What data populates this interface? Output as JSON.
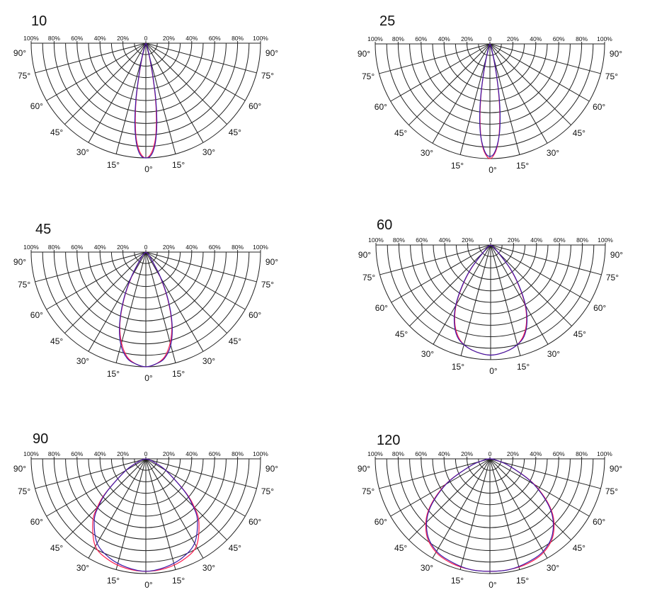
{
  "chart_data": [
    {
      "type": "polar",
      "title": "10",
      "beam_angle_deg": 10,
      "radial_tick_labels": [
        "100%",
        "80%",
        "60%",
        "40%",
        "20%",
        "0",
        "20%",
        "40%",
        "60%",
        "80%",
        "100%"
      ],
      "angle_labels": [
        "90°",
        "75°",
        "60°",
        "45°",
        "30°",
        "15°",
        "0°"
      ],
      "series": [
        {
          "color": "#ff1a4d",
          "angles_deg": [
            0,
            2,
            4,
            6,
            8,
            10,
            12,
            15,
            20,
            30
          ],
          "values_pct": [
            100,
            98,
            92,
            82,
            66,
            48,
            28,
            12,
            4,
            1
          ]
        },
        {
          "color": "#3a1aa8",
          "angles_deg": [
            0,
            2,
            4,
            6,
            8,
            10,
            12,
            15,
            20,
            30
          ],
          "values_pct": [
            100,
            99,
            94,
            84,
            69,
            50,
            30,
            13,
            4,
            1
          ]
        }
      ]
    },
    {
      "type": "polar",
      "title": "25",
      "beam_angle_deg": 25,
      "radial_tick_labels": [
        "100%",
        "80%",
        "60%",
        "40%",
        "20%",
        "0",
        "20%",
        "40%",
        "60%",
        "80%",
        "100%"
      ],
      "angle_labels": [
        "90°",
        "75°",
        "60°",
        "45°",
        "30°",
        "15°",
        "0°"
      ],
      "series": [
        {
          "color": "#ff1a4d",
          "angles_deg": [
            0,
            2,
            4,
            6,
            8,
            10,
            12,
            15,
            20,
            30
          ],
          "values_pct": [
            100,
            97,
            90,
            78,
            62,
            44,
            26,
            11,
            3,
            1
          ]
        },
        {
          "color": "#3a1aa8",
          "angles_deg": [
            0,
            2,
            4,
            6,
            8,
            10,
            12,
            15,
            20,
            30
          ],
          "values_pct": [
            98,
            96,
            89,
            79,
            64,
            46,
            28,
            12,
            3,
            1
          ]
        }
      ]
    },
    {
      "type": "polar",
      "title": "45",
      "beam_angle_deg": 45,
      "radial_tick_labels": [
        "100%",
        "80%",
        "60%",
        "40%",
        "20%",
        "0",
        "20%",
        "40%",
        "60%",
        "80%",
        "100%"
      ],
      "angle_labels": [
        "90°",
        "75°",
        "60°",
        "45°",
        "30°",
        "15°",
        "0°"
      ],
      "series": [
        {
          "color": "#ff1a4d",
          "angles_deg": [
            0,
            5,
            10,
            15,
            20,
            25,
            30,
            40,
            50
          ],
          "values_pct": [
            100,
            98,
            93,
            82,
            66,
            45,
            25,
            6,
            1
          ]
        },
        {
          "color": "#3a1aa8",
          "angles_deg": [
            0,
            5,
            10,
            15,
            20,
            25,
            30,
            40,
            50
          ],
          "values_pct": [
            100,
            98,
            94,
            84,
            67,
            46,
            26,
            6,
            1
          ]
        }
      ]
    },
    {
      "type": "polar",
      "title": "60",
      "beam_angle_deg": 60,
      "radial_tick_labels": [
        "100%",
        "80%",
        "60%",
        "40%",
        "20%",
        "0",
        "20%",
        "40%",
        "60%",
        "80%",
        "100%"
      ],
      "angle_labels": [
        "90°",
        "75°",
        "60°",
        "45°",
        "30°",
        "15°",
        "0°"
      ],
      "series": [
        {
          "color": "#ff1a4d",
          "angles_deg": [
            0,
            5,
            10,
            15,
            20,
            25,
            30,
            35,
            40,
            50,
            60
          ],
          "values_pct": [
            96,
            95,
            93,
            90,
            84,
            74,
            60,
            42,
            25,
            5,
            1
          ]
        },
        {
          "color": "#3a1aa8",
          "angles_deg": [
            0,
            5,
            10,
            15,
            20,
            25,
            30,
            35,
            40,
            50,
            60
          ],
          "values_pct": [
            96,
            95,
            93,
            90,
            85,
            75,
            61,
            43,
            26,
            5,
            1
          ]
        }
      ]
    },
    {
      "type": "polar",
      "title": "90",
      "beam_angle_deg": 90,
      "radial_tick_labels": [
        "100%",
        "80%",
        "60%",
        "40%",
        "20%",
        "0",
        "20%",
        "40%",
        "60%",
        "80%",
        "100%"
      ],
      "angle_labels": [
        "90°",
        "75°",
        "60°",
        "45°",
        "30°",
        "15°",
        "0°"
      ],
      "series": [
        {
          "color": "#ff1a4d",
          "angles_deg": [
            0,
            10,
            20,
            30,
            40,
            45,
            50,
            60,
            70,
            80
          ],
          "values_pct": [
            98,
            97,
            94,
            88,
            72,
            60,
            45,
            20,
            6,
            1
          ]
        },
        {
          "color": "#3a1aa8",
          "angles_deg": [
            0,
            10,
            20,
            30,
            40,
            45,
            50,
            60,
            70,
            80
          ],
          "values_pct": [
            98,
            96,
            92,
            85,
            70,
            58,
            44,
            20,
            6,
            1
          ]
        }
      ]
    },
    {
      "type": "polar",
      "title": "120",
      "beam_angle_deg": 120,
      "radial_tick_labels": [
        "100%",
        "80%",
        "60%",
        "40%",
        "20%",
        "0",
        "20%",
        "40%",
        "60%",
        "80%",
        "100%"
      ],
      "angle_labels": [
        "90°",
        "75°",
        "60°",
        "45°",
        "30°",
        "15°",
        "0°"
      ],
      "series": [
        {
          "color": "#ff1a4d",
          "angles_deg": [
            0,
            10,
            20,
            30,
            40,
            50,
            60,
            70,
            80,
            90
          ],
          "values_pct": [
            98,
            98,
            97,
            94,
            86,
            70,
            45,
            18,
            4,
            0
          ]
        },
        {
          "color": "#3a1aa8",
          "angles_deg": [
            0,
            10,
            20,
            30,
            40,
            50,
            60,
            70,
            80,
            90
          ],
          "values_pct": [
            98,
            98,
            96,
            93,
            85,
            69,
            44,
            18,
            4,
            0
          ]
        }
      ]
    }
  ]
}
